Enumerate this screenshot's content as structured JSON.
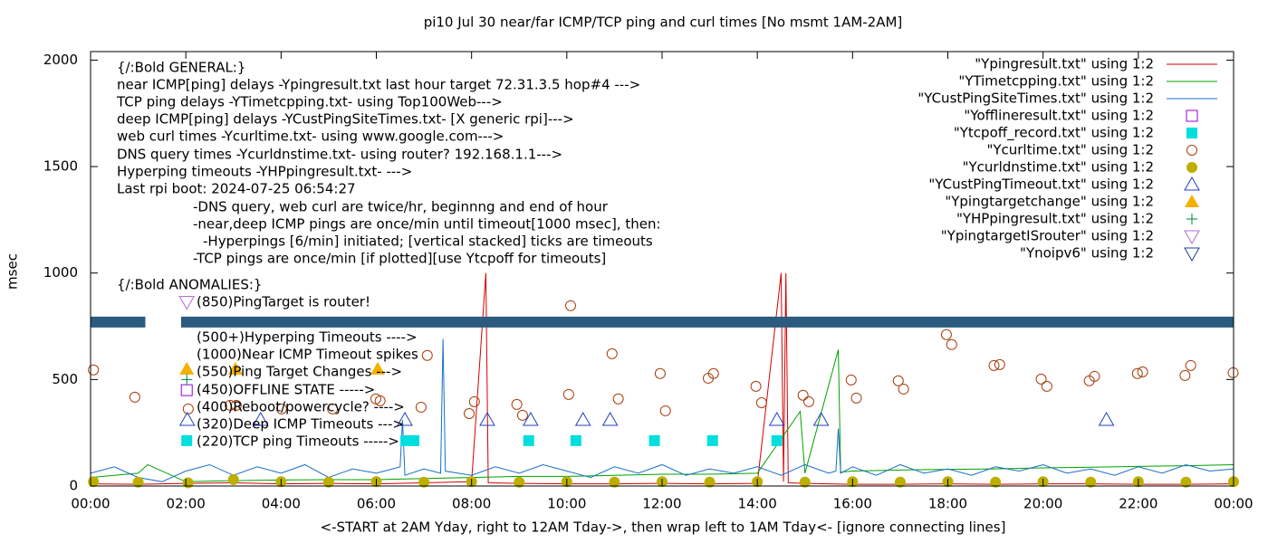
{
  "chart_data": {
    "type": "line",
    "title": "pi10 Jul 30  near/far ICMP/TCP ping and curl times [No msmt 1AM-2AM]",
    "x_label": "<-START at 2AM Yday, right to 12AM Tday->, then wrap left to 1AM Tday<- [ignore connecting lines]",
    "y_label": "msec",
    "xlim": [
      0,
      24
    ],
    "ylim": [
      0,
      2040
    ],
    "xticks": [
      {
        "value": 0,
        "label": "00:00"
      },
      {
        "value": 2,
        "label": "02:00"
      },
      {
        "value": 4,
        "label": "04:00"
      },
      {
        "value": 6,
        "label": "06:00"
      },
      {
        "value": 8,
        "label": "08:00"
      },
      {
        "value": 10,
        "label": "10:00"
      },
      {
        "value": 12,
        "label": "12:00"
      },
      {
        "value": 14,
        "label": "14:00"
      },
      {
        "value": 16,
        "label": "16:00"
      },
      {
        "value": 18,
        "label": "18:00"
      },
      {
        "value": 20,
        "label": "20:00"
      },
      {
        "value": 22,
        "label": "22:00"
      },
      {
        "value": 24,
        "label": "00:00"
      }
    ],
    "yticks": [
      0,
      500,
      1000,
      1500,
      2000
    ],
    "grid": false,
    "legend": "top-right",
    "notes": [
      "{/:Bold GENERAL:}",
      "near ICMP[ping] delays -Ypingresult.txt last hour target 72.31.3.5 hop#4 --->",
      "TCP ping delays -YTimetcpping.txt- using Top100Web--->",
      "deep ICMP[ping] delays -YCustPingSiteTimes.txt- [X generic rpi]--->",
      "web curl times -Ycurltime.txt- using www.google.com--->",
      "DNS query times -Ycurldnstime.txt- using router? 192.168.1.1--->",
      "Hyperping timeouts -YHPpingresult.txt- --->",
      "Last rpi boot: 2024-07-25 06:54:27",
      "-DNS query, web curl are twice/hr, beginnng and end of hour",
      "-near,deep ICMP pings are once/min until timeout[1000 msec], then:",
      "-Hyperpings [6/min] initiated; [vertical stacked] ticks are timeouts",
      "-TCP pings are once/min [if plotted][use Ytcpoff for timeouts]",
      "{/:Bold ANOMALIES:}",
      "(850)PingTarget is router!",
      "(500+)Hyperping Timeouts ---->",
      "(1000)Near ICMP Timeout spikes",
      "(550)Ping Target Changes --->",
      "(450)OFFLINE STATE ----->",
      "(400)Reboot/powercycle? ---->",
      "(320)Deep ICMP Timeouts --->",
      "(220)TCP ping Timeouts ----->"
    ],
    "series": [
      {
        "name": "\"Ypingresult.txt\" using 1:2",
        "color": "#d40000",
        "style": "line",
        "x": [
          0,
          1,
          2,
          3,
          4,
          5,
          6,
          7,
          8,
          8.3,
          8.35,
          9,
          10,
          11,
          12,
          13,
          14,
          14.5,
          14.55,
          14.6,
          14.65,
          15,
          16,
          17,
          18,
          19,
          20,
          21,
          22,
          23,
          24
        ],
        "values": [
          10,
          8,
          12,
          15,
          10,
          12,
          10,
          15,
          20,
          1000,
          15,
          12,
          10,
          10,
          12,
          10,
          12,
          1000,
          20,
          1000,
          15,
          12,
          8,
          8,
          10,
          8,
          10,
          10,
          8,
          8,
          10
        ]
      },
      {
        "name": "\"YTimetcpping.txt\" using 1:2",
        "color": "#00a000",
        "style": "line",
        "x": [
          0,
          1,
          1.2,
          2,
          3,
          4,
          5,
          6,
          7,
          8,
          9,
          10,
          11,
          12,
          13,
          14,
          14.9,
          15,
          15.7,
          15.75,
          16,
          17,
          18,
          19,
          20,
          21,
          22,
          23,
          24
        ],
        "values": [
          40,
          60,
          100,
          20,
          25,
          28,
          30,
          30,
          35,
          40,
          45,
          45,
          50,
          55,
          55,
          60,
          350,
          60,
          640,
          65,
          70,
          75,
          78,
          80,
          85,
          88,
          92,
          95,
          100
        ]
      },
      {
        "name": "\"YCustPingSiteTimes.txt\" using 1:2",
        "color": "#1a6fc9",
        "style": "line",
        "x": [
          0,
          0.5,
          1,
          1.5,
          2,
          2.5,
          3,
          3.5,
          4,
          4.5,
          5,
          5.5,
          6,
          6.5,
          6.55,
          6.6,
          7,
          7.35,
          7.4,
          7.45,
          8,
          8.5,
          9,
          9.5,
          10,
          10.5,
          11,
          11.5,
          12,
          12.5,
          13,
          13.5,
          14,
          14.5,
          15,
          15.5,
          15.65,
          15.7,
          15.75,
          16,
          16.5,
          17,
          17.5,
          18,
          18.5,
          19,
          19.5,
          20,
          20.5,
          21,
          21.5,
          22,
          22.5,
          23,
          23.5,
          24
        ],
        "values": [
          60,
          90,
          40,
          20,
          70,
          100,
          50,
          90,
          60,
          100,
          40,
          80,
          60,
          90,
          310,
          50,
          80,
          60,
          690,
          70,
          50,
          90,
          60,
          100,
          70,
          40,
          90,
          60,
          100,
          50,
          80,
          60,
          90,
          50,
          100,
          60,
          70,
          270,
          60,
          90,
          50,
          100,
          60,
          80,
          50,
          90,
          70,
          100,
          60,
          80,
          50,
          90,
          60,
          100,
          70,
          80
        ]
      },
      {
        "name": "\"Yofflineresult.txt\" using 1:2",
        "color": "#9400d3",
        "style": "open-square",
        "x": [
          2.02
        ],
        "values": [
          450
        ]
      },
      {
        "name": "\"Ytcpoff_record.txt\" using 1:2",
        "color": "#00dede",
        "style": "filled-square",
        "x": [
          2.02,
          6.62,
          6.79,
          9.2,
          10.19,
          11.84,
          13.06,
          14.41
        ],
        "values": [
          213,
          213,
          213,
          213,
          213,
          213,
          213,
          213
        ]
      },
      {
        "name": "\"Ycurltime.txt\" using 1:2",
        "color": "#a83c0a",
        "style": "open-circle",
        "x": [
          0.06,
          0.93,
          2.05,
          2.93,
          3.06,
          4.01,
          5.08,
          5.99,
          6.08,
          6.94,
          7.07,
          7.95,
          8.06,
          8.95,
          9.07,
          10.04,
          10.08,
          10.95,
          11.08,
          11.96,
          12.07,
          12.97,
          13.08,
          13.97,
          14.09,
          14.96,
          15.08,
          15.97,
          16.08,
          16.96,
          17.07,
          17.97,
          18.08,
          18.97,
          19.09,
          19.96,
          20.08,
          20.97,
          21.08,
          21.98,
          22.09,
          22.98,
          23.1,
          23.99
        ],
        "values": [
          545,
          417,
          362,
          379,
          379,
          362,
          362,
          409,
          400,
          370,
          613,
          340,
          396,
          383,
          332,
          430,
          847,
          621,
          409,
          528,
          353,
          506,
          528,
          468,
          391,
          426,
          396,
          498,
          413,
          494,
          455,
          711,
          664,
          566,
          570,
          502,
          468,
          494,
          515,
          528,
          536,
          519,
          566,
          532
        ]
      },
      {
        "name": "\"Ycurldnstime.txt\" using 1:2",
        "color": "#bdae00",
        "style": "filled-circle",
        "x": [
          0.06,
          1,
          2.05,
          3,
          4,
          5,
          6,
          7,
          8,
          9,
          10,
          11,
          12,
          13,
          14,
          15,
          16,
          17,
          18,
          19,
          20,
          21,
          22,
          23,
          24
        ],
        "values": [
          20,
          18,
          15,
          30,
          20,
          18,
          20,
          18,
          20,
          18,
          20,
          18,
          20,
          18,
          20,
          18,
          20,
          18,
          20,
          18,
          20,
          18,
          20,
          18,
          20
        ]
      },
      {
        "name": "\"YCustPingTimeout.txt\" using 1:2",
        "color": "#2040c0",
        "style": "open-triangle",
        "x": [
          2.03,
          3.57,
          6.6,
          8.33,
          9.24,
          10.34,
          10.91,
          14.41,
          15.34,
          21.33
        ],
        "values": [
          310,
          310,
          310,
          310,
          310,
          310,
          310,
          310,
          310,
          310
        ]
      },
      {
        "name": "\"Ypingtargetchange\" using 1:2",
        "color": "#f5b000",
        "style": "filled-triangle",
        "x": [
          2.02,
          3.04,
          6.03
        ],
        "values": [
          549,
          549,
          549
        ]
      },
      {
        "name": "\"YHPpingresult.txt\" using 1:2",
        "color": "#008040",
        "style": "plus",
        "x": [
          2.02
        ],
        "values": [
          500
        ]
      },
      {
        "name": "\"YpingtargetISrouter\" using 1:2",
        "color": "#b36bd6",
        "style": "open-down-triangle",
        "x": [
          2.02
        ],
        "values": [
          865
        ]
      },
      {
        "name": "\"Ynoipv6\" using 1:2",
        "color": "#2b5b7e",
        "style": "band",
        "x": [
          0,
          1.15,
          1.5,
          1.9,
          24
        ],
        "values": [
          770,
          770,
          null,
          770,
          770
        ]
      }
    ]
  }
}
